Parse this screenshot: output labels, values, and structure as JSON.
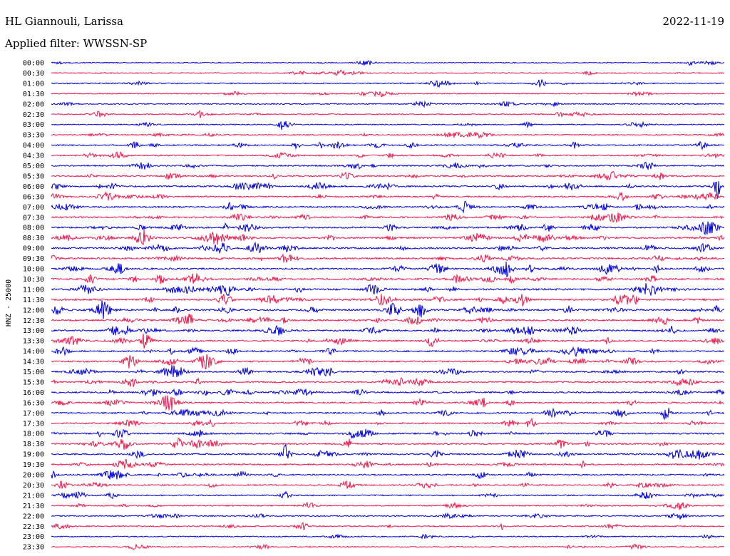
{
  "header": {
    "station": "HL Giannouli, Larissa",
    "date": "2022-11-19",
    "filter": "Applied filter: WWSSN-SP"
  },
  "chart_data": {
    "type": "line",
    "title": "HL Giannouli, Larissa",
    "subtitle": "Applied filter: WWSSN-SP",
    "ylabel": "HNZ - 25000",
    "xlabel": "",
    "grid": false,
    "legend": "none",
    "row_interval_minutes": 30,
    "categories": [
      "00:00",
      "00:30",
      "01:00",
      "01:30",
      "02:00",
      "02:30",
      "03:00",
      "03:30",
      "04:00",
      "04:30",
      "05:00",
      "05:30",
      "06:00",
      "06:30",
      "07:00",
      "07:30",
      "08:00",
      "08:30",
      "09:00",
      "09:30",
      "10:00",
      "10:30",
      "11:00",
      "11:30",
      "12:00",
      "12:30",
      "13:00",
      "13:30",
      "14:00",
      "14:30",
      "15:00",
      "15:30",
      "16:00",
      "16:30",
      "17:00",
      "17:30",
      "18:00",
      "18:30",
      "19:00",
      "19:30",
      "20:00",
      "20:30",
      "21:00",
      "21:30",
      "22:00",
      "22:30",
      "23:00",
      "23:30"
    ],
    "trace_colors": [
      "#0000e0",
      "#f0174a"
    ],
    "activity_level": [
      0.1,
      0.15,
      0.2,
      0.1,
      0.15,
      0.15,
      0.15,
      0.25,
      0.35,
      0.35,
      0.35,
      0.45,
      0.45,
      0.45,
      0.5,
      0.5,
      0.55,
      0.55,
      0.55,
      0.6,
      0.6,
      0.6,
      0.65,
      0.65,
      0.65,
      0.6,
      0.6,
      0.55,
      0.5,
      0.45,
      0.45,
      0.45,
      0.45,
      0.45,
      0.4,
      0.4,
      0.45,
      0.4,
      0.4,
      0.4,
      0.35,
      0.35,
      0.3,
      0.25,
      0.2,
      0.2,
      0.15,
      0.15
    ]
  }
}
